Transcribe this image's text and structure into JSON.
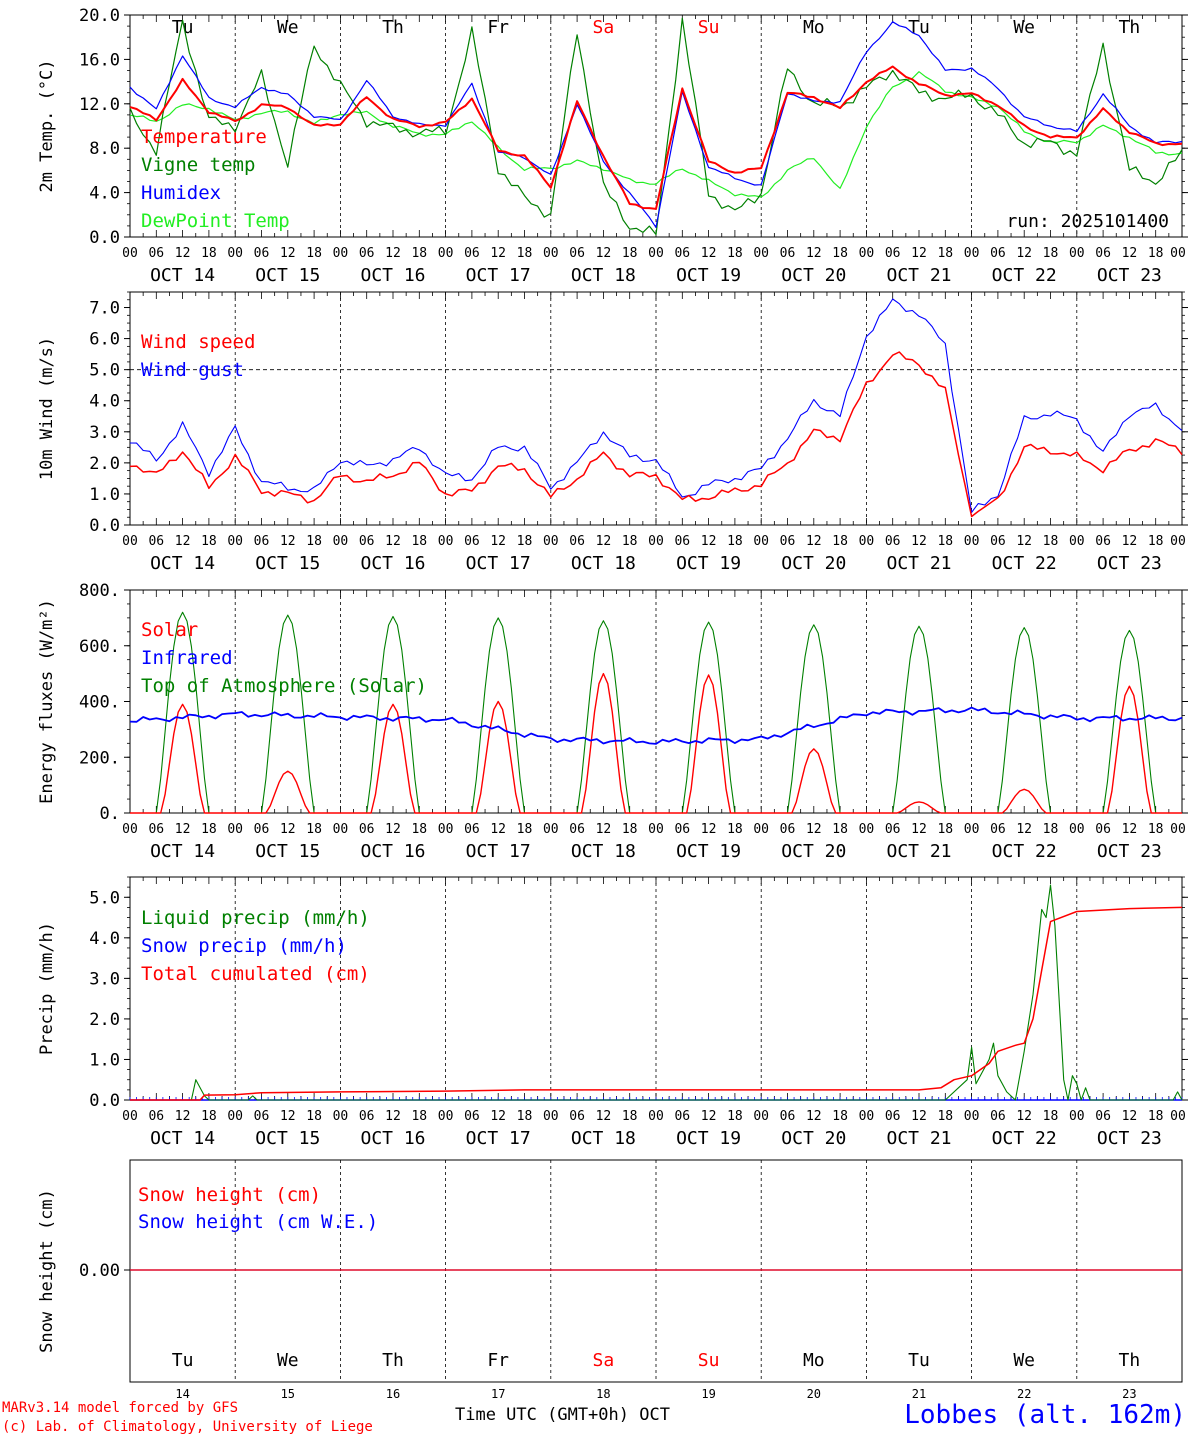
{
  "colors": {
    "red": "#ff0000",
    "green": "#008000",
    "blue": "#0000ff",
    "lightgreen": "#22ee22",
    "black": "#000000"
  },
  "days": {
    "abbr": [
      "Tu",
      "We",
      "Th",
      "Fr",
      "Sa",
      "Su",
      "Mo",
      "Tu",
      "We",
      "Th"
    ],
    "weekend": [
      false,
      false,
      false,
      false,
      true,
      true,
      false,
      false,
      false,
      false
    ],
    "dates": [
      "OCT 14",
      "OCT 15",
      "OCT 16",
      "OCT 17",
      "OCT 18",
      "OCT 19",
      "OCT 20",
      "OCT 21",
      "OCT 22",
      "OCT 23"
    ],
    "nums": [
      "14",
      "15",
      "16",
      "17",
      "18",
      "19",
      "20",
      "21",
      "22",
      "23"
    ],
    "hour_labels": [
      "00",
      "06",
      "12",
      "18"
    ],
    "end_label": "00"
  },
  "chart_data": [
    {
      "type": "line",
      "ylabel": "2m Temp. (°C)",
      "ylim": [
        0,
        20
      ],
      "yticks": [
        0,
        4,
        8,
        12,
        16,
        20
      ],
      "ytick_labels": [
        "0.0",
        "4.0",
        "8.0",
        "12.0",
        "16.0",
        "20.0"
      ],
      "annotation": "run: 2025101400",
      "x_hours": [
        0,
        6,
        12,
        18,
        24,
        30,
        36,
        42,
        48,
        54,
        60,
        66,
        72,
        78,
        84,
        90,
        96,
        102,
        108,
        114,
        120,
        126,
        132,
        138,
        144,
        150,
        156,
        162,
        168,
        174,
        180,
        186,
        192,
        198,
        204,
        210,
        216,
        222,
        228,
        234,
        240
      ],
      "series": [
        {
          "name": "Temperature",
          "color": "#ff0000",
          "values": [
            11.7,
            10.6,
            14.1,
            11.3,
            10.4,
            11.9,
            11.7,
            10.0,
            10.2,
            12.6,
            10.6,
            10.0,
            10.3,
            12.5,
            7.8,
            7.3,
            4.5,
            12.2,
            7.3,
            3.0,
            2.5,
            13.4,
            6.8,
            5.8,
            6.2,
            13.0,
            12.6,
            11.6,
            14.0,
            15.3,
            13.8,
            12.8,
            12.9,
            11.9,
            10.0,
            9.0,
            9.0,
            11.5,
            9.5,
            8.4,
            8.4
          ]
        },
        {
          "name": "Vigne temp",
          "color": "#008000",
          "values": [
            11.1,
            7.8,
            19.4,
            10.5,
            10.0,
            14.5,
            6.6,
            17.3,
            13.6,
            10.5,
            9.8,
            9.4,
            9.5,
            18.4,
            6.2,
            3.5,
            2.0,
            18.6,
            4.5,
            1.0,
            0.2,
            19.5,
            4.0,
            2.2,
            4.0,
            15.2,
            12.0,
            11.8,
            13.4,
            15.0,
            13.0,
            12.5,
            12.8,
            11.0,
            8.5,
            8.5,
            7.5,
            17.3,
            6.0,
            5.0,
            7.5
          ]
        },
        {
          "name": "Humidex",
          "color": "#0000ff",
          "values": [
            13.5,
            11.5,
            16.4,
            12.5,
            11.7,
            13.5,
            12.8,
            10.9,
            10.5,
            14.1,
            10.9,
            10.1,
            10.1,
            13.8,
            7.6,
            7.2,
            5.5,
            12.0,
            6.8,
            3.9,
            1.0,
            13.0,
            6.3,
            5.3,
            4.6,
            13.0,
            12.2,
            12.2,
            16.7,
            19.3,
            18.2,
            15.0,
            15.2,
            13.4,
            10.8,
            10.0,
            9.5,
            12.9,
            10.0,
            8.5,
            8.6
          ]
        },
        {
          "name": "DewPoint Temp",
          "color": "#22ee22",
          "values": [
            11.0,
            10.4,
            11.9,
            11.6,
            10.5,
            11.2,
            11.3,
            10.2,
            11.1,
            11.2,
            10.0,
            9.3,
            9.2,
            10.5,
            8.0,
            6.1,
            6.2,
            6.8,
            6.2,
            5.1,
            4.8,
            6.2,
            5.0,
            3.9,
            3.5,
            6.0,
            7.2,
            4.2,
            10.0,
            13.5,
            14.8,
            13.2,
            12.5,
            11.8,
            9.5,
            8.5,
            8.6,
            10.0,
            9.0,
            7.6,
            7.5
          ]
        }
      ]
    },
    {
      "type": "line",
      "ylabel": "10m Wind (m/s)",
      "ylim": [
        0,
        7.5
      ],
      "yticks": [
        0,
        1,
        2,
        3,
        4,
        5,
        6,
        7
      ],
      "ytick_labels": [
        "0.0",
        "1.0",
        "2.0",
        "3.0",
        "4.0",
        "5.0",
        "6.0",
        "7.0"
      ],
      "reference_line": 5.0,
      "x_hours": [
        0,
        6,
        12,
        18,
        24,
        30,
        36,
        42,
        48,
        54,
        60,
        66,
        72,
        78,
        84,
        90,
        96,
        102,
        108,
        114,
        120,
        126,
        132,
        138,
        144,
        150,
        156,
        162,
        168,
        174,
        180,
        186,
        192,
        198,
        204,
        210,
        216,
        222,
        228,
        234,
        240
      ],
      "series": [
        {
          "name": "Wind speed",
          "color": "#ff0000",
          "values": [
            2.0,
            1.6,
            2.4,
            1.2,
            2.2,
            1.1,
            1.0,
            0.8,
            1.6,
            1.4,
            1.6,
            2.0,
            1.0,
            1.1,
            1.9,
            1.8,
            0.9,
            1.5,
            2.3,
            1.6,
            1.6,
            0.8,
            0.9,
            1.1,
            1.3,
            2.0,
            3.0,
            2.8,
            4.5,
            5.5,
            5.2,
            4.3,
            0.3,
            0.8,
            2.5,
            2.4,
            2.2,
            1.8,
            2.4,
            2.7,
            2.4
          ]
        },
        {
          "name": "Wind gust",
          "color": "#0000ff",
          "values": [
            2.7,
            2.1,
            3.2,
            1.7,
            3.1,
            1.4,
            1.2,
            1.1,
            2.1,
            1.9,
            2.1,
            2.5,
            1.6,
            1.5,
            2.5,
            2.5,
            1.2,
            2.0,
            3.0,
            2.2,
            2.1,
            0.9,
            1.3,
            1.5,
            1.8,
            2.8,
            4.0,
            3.5,
            6.1,
            7.2,
            6.8,
            5.8,
            0.4,
            1.0,
            3.4,
            3.6,
            3.4,
            2.3,
            3.6,
            3.8,
            3.1
          ]
        }
      ]
    },
    {
      "type": "line",
      "ylabel": "Energy fluxes (W/m²)",
      "ylim": [
        0,
        800
      ],
      "yticks": [
        0,
        200,
        400,
        600,
        800
      ],
      "ytick_labels": [
        "0.",
        "200.",
        "400.",
        "600.",
        "800."
      ],
      "solar_peaks": [
        390,
        150,
        390,
        400,
        500,
        495,
        230,
        40,
        85,
        455
      ],
      "toa_peaks": [
        720,
        710,
        705,
        700,
        690,
        685,
        675,
        670,
        665,
        655
      ],
      "infrared_daily": [
        330,
        355,
        345,
        335,
        265,
        255,
        265,
        360,
        370,
        340,
        340
      ],
      "series": [
        {
          "name": "Solar",
          "color": "#ff0000"
        },
        {
          "name": "Infrared",
          "color": "#0000ff"
        },
        {
          "name": "Top of Atmosphere (Solar)",
          "color": "#008000"
        }
      ]
    },
    {
      "type": "line",
      "ylabel": "Precip (mm/h)",
      "ylim": [
        0,
        5.5
      ],
      "yticks": [
        0,
        1,
        2,
        3,
        4,
        5
      ],
      "ytick_labels": [
        "0.0",
        "1.0",
        "2.0",
        "3.0",
        "4.0",
        "5.0"
      ],
      "liquid_points": [
        [
          0,
          0
        ],
        [
          14,
          0
        ],
        [
          15,
          0.5
        ],
        [
          16,
          0.3
        ],
        [
          17,
          0.1
        ],
        [
          18,
          0
        ],
        [
          27,
          0
        ],
        [
          28,
          0.1
        ],
        [
          29,
          0
        ],
        [
          186,
          0
        ],
        [
          191,
          0.5
        ],
        [
          192,
          1.3
        ],
        [
          193,
          0.4
        ],
        [
          196,
          1.0
        ],
        [
          197,
          1.4
        ],
        [
          198,
          0.6
        ],
        [
          200,
          0.2
        ],
        [
          202,
          0
        ],
        [
          204,
          1.2
        ],
        [
          206,
          2.6
        ],
        [
          208,
          4.7
        ],
        [
          209,
          4.5
        ],
        [
          210,
          5.3
        ],
        [
          211,
          4.3
        ],
        [
          213,
          0.5
        ],
        [
          214,
          0
        ],
        [
          215,
          0.6
        ],
        [
          216,
          0.4
        ],
        [
          217,
          0
        ],
        [
          218,
          0.3
        ],
        [
          219,
          0
        ],
        [
          238,
          0
        ],
        [
          239,
          0.2
        ],
        [
          240,
          0
        ]
      ],
      "cumulative_points": [
        [
          0,
          0
        ],
        [
          16,
          0
        ],
        [
          17,
          0.12
        ],
        [
          24,
          0.13
        ],
        [
          30,
          0.18
        ],
        [
          48,
          0.2
        ],
        [
          72,
          0.22
        ],
        [
          90,
          0.25
        ],
        [
          120,
          0.25
        ],
        [
          168,
          0.25
        ],
        [
          180,
          0.25
        ],
        [
          185,
          0.3
        ],
        [
          188,
          0.5
        ],
        [
          192,
          0.6
        ],
        [
          196,
          0.9
        ],
        [
          198,
          1.2
        ],
        [
          202,
          1.35
        ],
        [
          204,
          1.4
        ],
        [
          206,
          2.0
        ],
        [
          208,
          3.2
        ],
        [
          210,
          4.4
        ],
        [
          216,
          4.65
        ],
        [
          228,
          4.72
        ],
        [
          240,
          4.75
        ]
      ],
      "series": [
        {
          "name": "Liquid precip (mm/h)",
          "color": "#008000"
        },
        {
          "name": "Snow precip (mm/h)",
          "color": "#0000ff"
        },
        {
          "name": "Total cumulated (cm)",
          "color": "#ff0000"
        }
      ]
    },
    {
      "type": "line",
      "ylabel": "Snow height (cm)",
      "ytick_labels": [
        "0.00"
      ],
      "series": [
        {
          "name": "Snow height (cm)",
          "color": "#ff0000",
          "value": 0.0
        },
        {
          "name": "Snow height (cm W.E.)",
          "color": "#0000ff",
          "value": 0.0
        }
      ]
    }
  ],
  "footer": {
    "model_line1": "MARv3.14 model forced by GFS",
    "model_line2": "(c) Lab. of Climatology, University of Liege",
    "xaxis_title": "Time UTC (GMT+0h) OCT",
    "station": "Lobbes (alt. 162m)"
  }
}
